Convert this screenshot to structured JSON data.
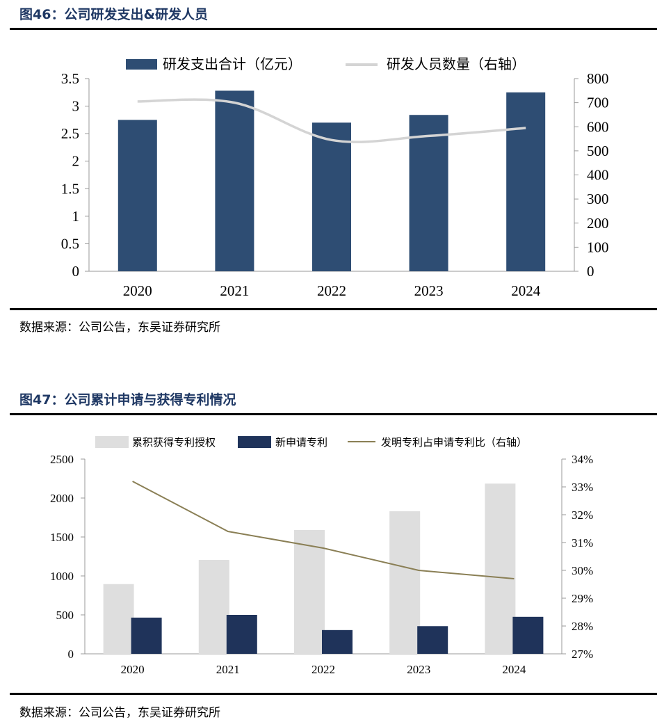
{
  "figures": [
    {
      "title": "图46：公司研发支出&研发人员",
      "source": "数据来源：公司公告，东吴证券研究所"
    },
    {
      "title": "图47：公司累计申请与获得专利情况",
      "source": "数据来源：公司公告，东吴证券研究所"
    }
  ],
  "colors": {
    "title": "#1f3864",
    "bar_dark": "#2e4d73",
    "bar_navy": "#1f335a",
    "bar_light": "#dedede",
    "line_gray": "#d4d4d4",
    "line_olive": "#8a7f55"
  },
  "chart_data": [
    {
      "type": "bar",
      "categories": [
        "2020",
        "2021",
        "2022",
        "2023",
        "2024"
      ],
      "series": [
        {
          "name": "研发支出合计（亿元）",
          "type": "bar",
          "axis": "left",
          "values": [
            2.75,
            3.28,
            2.7,
            2.84,
            3.25
          ]
        },
        {
          "name": "研发人员数量（右轴）",
          "type": "line",
          "axis": "right",
          "smooth": true,
          "values": [
            705,
            700,
            545,
            562,
            595
          ]
        }
      ],
      "y_left": {
        "lim": [
          0,
          3.5
        ],
        "ticks": [
          "0",
          "0.5",
          "1",
          "1.5",
          "2",
          "2.5",
          "3",
          "3.5"
        ]
      },
      "y_right": {
        "lim": [
          0,
          800
        ],
        "ticks": [
          "0",
          "100",
          "200",
          "300",
          "400",
          "500",
          "600",
          "700",
          "800"
        ]
      },
      "grid": false,
      "legend": "top"
    },
    {
      "type": "bar",
      "categories": [
        "2020",
        "2021",
        "2022",
        "2023",
        "2024"
      ],
      "series": [
        {
          "name": "累积获得专利授权",
          "type": "bar",
          "axis": "left",
          "values": [
            895,
            1205,
            1590,
            1830,
            2185
          ]
        },
        {
          "name": "新申请专利",
          "type": "bar",
          "axis": "left",
          "values": [
            465,
            500,
            305,
            355,
            475
          ]
        },
        {
          "name": "发明专利占申请专利比（右轴）",
          "type": "line",
          "axis": "right",
          "values": [
            33.2,
            31.4,
            30.8,
            30.0,
            29.7
          ]
        }
      ],
      "y_left": {
        "lim": [
          0,
          2500
        ],
        "ticks": [
          "0",
          "500",
          "1000",
          "1500",
          "2000",
          "2500"
        ]
      },
      "y_right": {
        "lim": [
          27,
          34
        ],
        "unit": "%",
        "ticks": [
          "27%",
          "28%",
          "29%",
          "30%",
          "31%",
          "32%",
          "33%",
          "34%"
        ]
      },
      "grid": false,
      "legend": "top"
    }
  ]
}
